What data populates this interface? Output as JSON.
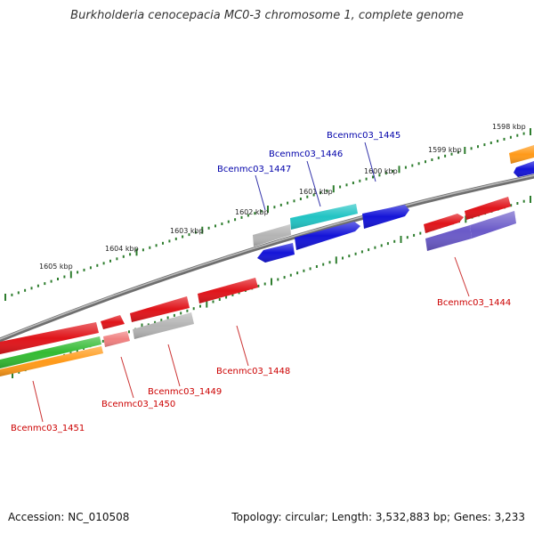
{
  "title": "Burkholderia cenocepacia MC0-3 chromosome 1, complete genome",
  "footer": {
    "accession": "Accession: NC_010508",
    "summary": "Topology: circular; Length: 3,532,883 bp; Genes: 3,233"
  },
  "colors": {
    "backbone": "#777777",
    "tick": "#2e7d2e",
    "red": "#e0141a",
    "blue": "#1414d8",
    "cyan": "#22c4c4",
    "gray": "#b4b4b4",
    "purple": "#6a5ac8",
    "green": "#33bb33",
    "orange": "#ff9a1a",
    "pink": "#f08080",
    "label_top": "#0000aa",
    "label_bottom": "#cc0000"
  },
  "scale_labels": [
    "1605 kbp",
    "1604 kbp",
    "1603 kbp",
    "1602 kbp",
    "1601 kbp",
    "1600 kbp",
    "1599 kbp",
    "1598 kbp"
  ],
  "genes_upper": [
    {
      "name": "Bcenmc03_1447",
      "color": "gray"
    },
    {
      "name": "Bcenmc03_1446",
      "color": "cyan"
    },
    {
      "name": "Bcenmc03_1445",
      "color": "blue"
    },
    {
      "name": "",
      "color": "blue"
    },
    {
      "name": "",
      "color": "red"
    },
    {
      "name": "",
      "color": "red"
    },
    {
      "name": "",
      "color": "orange"
    },
    {
      "name": "",
      "color": "blue"
    }
  ],
  "genes_lower": [
    {
      "name": "Bcenmc03_1451",
      "color": "red"
    },
    {
      "name": "Bcenmc03_1450",
      "color": "pink"
    },
    {
      "name": "Bcenmc03_1449",
      "color": "gray"
    },
    {
      "name": "Bcenmc03_1448",
      "color": "red"
    },
    {
      "name": "Bcenmc03_1444",
      "color": "purple"
    }
  ]
}
